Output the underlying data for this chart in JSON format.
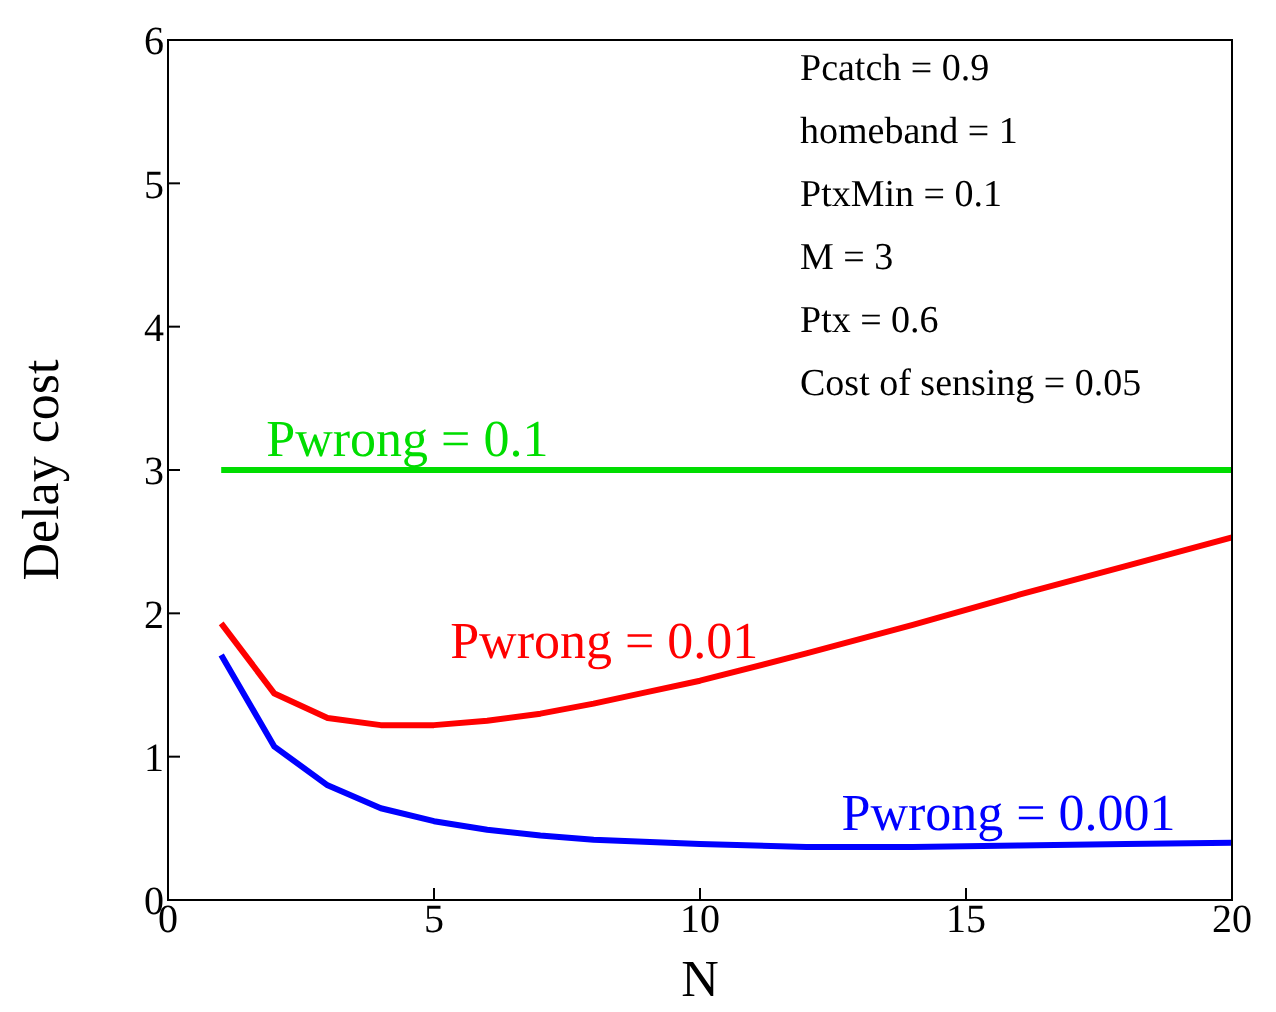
{
  "chart_data": {
    "type": "line",
    "xlabel": "N",
    "ylabel": "Delay cost",
    "xlim": [
      0,
      20
    ],
    "xticks": [
      0,
      5,
      10,
      15,
      20
    ],
    "ylim": [
      0,
      6
    ],
    "yticks": [
      0,
      1,
      2,
      3,
      4,
      5,
      6
    ],
    "grid": false,
    "legend": false,
    "marker": "none",
    "line_style": "solid",
    "series": [
      {
        "name": "Pwrong = 0.1",
        "color": "#00dd00",
        "x": [
          1,
          2,
          3,
          4,
          5,
          6,
          7,
          8,
          10,
          12,
          14,
          16,
          18,
          20
        ],
        "values": [
          3,
          3,
          3,
          3,
          3,
          3,
          3,
          3,
          3,
          3,
          3,
          3,
          3,
          3
        ]
      },
      {
        "name": "Pwrong = 0.01",
        "color": "#ff0000",
        "x": [
          1,
          2,
          3,
          4,
          5,
          6,
          7,
          8,
          9,
          10,
          12,
          14,
          16,
          18,
          20
        ],
        "values": [
          1.93,
          1.44,
          1.27,
          1.22,
          1.22,
          1.25,
          1.3,
          1.37,
          1.45,
          1.53,
          1.72,
          1.92,
          2.13,
          2.33,
          2.53
        ]
      },
      {
        "name": "Pwrong = 0.001",
        "color": "#0000ff",
        "x": [
          1,
          2,
          3,
          4,
          5,
          6,
          7,
          8,
          10,
          12,
          14,
          16,
          18,
          20
        ],
        "values": [
          1.71,
          1.07,
          0.8,
          0.64,
          0.55,
          0.49,
          0.45,
          0.42,
          0.39,
          0.37,
          0.37,
          0.38,
          0.39,
          0.4
        ]
      }
    ],
    "annotations": [
      "Pcatch = 0.9",
      "homeband = 1",
      "PtxMin = 0.1",
      "M = 3",
      "Ptx = 0.6",
      "Cost of sensing = 0.05"
    ]
  }
}
